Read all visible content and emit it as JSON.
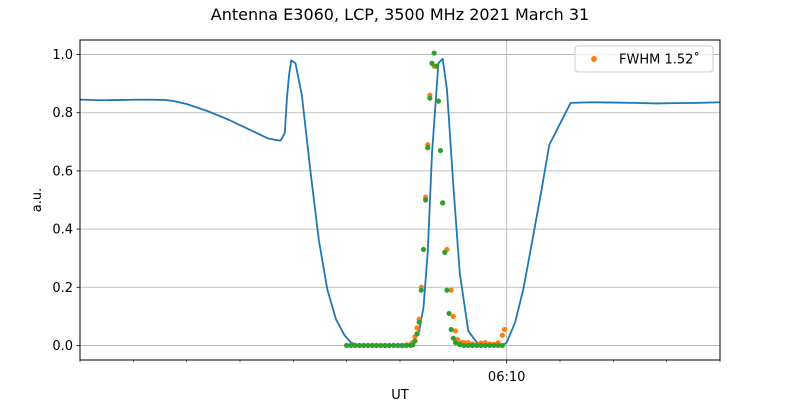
{
  "chart_data": {
    "type": "line",
    "title": "Antenna E3060, LCP, 3500 MHz 2021 March 31",
    "xlabel": "UT",
    "ylabel": "a.u.",
    "xlim": [
      0,
      15
    ],
    "ylim": [
      -0.05,
      1.05
    ],
    "x_unit": "minutes",
    "yticks": [
      0.0,
      0.2,
      0.4,
      0.6,
      0.8,
      1.0
    ],
    "ytick_labels": [
      "0.0",
      "0.2",
      "0.4",
      "0.6",
      "0.8",
      "1.0"
    ],
    "xticks_major": [
      10
    ],
    "xtick_labels": [
      "06:10"
    ],
    "xticks_minor": [
      0,
      1.25,
      2.5,
      3.75,
      5,
      6.25,
      7.5,
      8.75,
      11.25,
      12.5,
      13.75,
      15
    ],
    "grid": true,
    "legend": {
      "position": "top-right",
      "entries": [
        {
          "label": "FWHM 1.52˚",
          "color": "#ff7f0e",
          "marker": "circle"
        }
      ]
    },
    "series": [
      {
        "kind": "line",
        "color": "#1f77b4",
        "x": [
          0,
          0.5,
          1,
          1.5,
          2,
          2.2,
          2.5,
          3,
          3.5,
          4,
          4.4,
          4.6,
          4.7,
          4.8,
          4.85,
          4.9,
          4.95,
          5.05,
          5.2,
          5.4,
          5.6,
          5.8,
          6.0,
          6.2,
          6.35,
          6.5,
          6.7,
          6.9,
          7.1,
          7.4,
          7.7,
          7.85,
          7.95,
          8.05,
          8.15,
          8.25,
          8.4,
          8.5,
          8.6,
          8.75,
          8.9,
          9.1,
          9.3,
          9.5,
          9.7,
          9.9,
          10.0,
          10.2,
          10.4,
          10.6,
          10.8,
          11.0,
          11.5,
          12,
          12.5,
          13,
          13.5,
          14,
          14.5,
          15
        ],
        "y": [
          0.845,
          0.843,
          0.844,
          0.845,
          0.844,
          0.84,
          0.83,
          0.805,
          0.775,
          0.74,
          0.712,
          0.706,
          0.704,
          0.73,
          0.85,
          0.93,
          0.98,
          0.97,
          0.86,
          0.6,
          0.36,
          0.19,
          0.09,
          0.035,
          0.01,
          0.002,
          0.0,
          0.0,
          0.0,
          0.0,
          0.005,
          0.02,
          0.05,
          0.13,
          0.32,
          0.66,
          0.97,
          0.985,
          0.88,
          0.55,
          0.25,
          0.05,
          0.01,
          0.002,
          0.0,
          0.0,
          0.01,
          0.08,
          0.2,
          0.36,
          0.52,
          0.69,
          0.834,
          0.836,
          0.835,
          0.834,
          0.832,
          0.833,
          0.834,
          0.836
        ]
      },
      {
        "kind": "scatter",
        "name": "FWHM 1.52˚",
        "color": "#ff7f0e",
        "x": [
          6.25,
          6.35,
          6.45,
          6.55,
          6.65,
          6.75,
          6.85,
          6.95,
          7.05,
          7.15,
          7.25,
          7.35,
          7.45,
          7.55,
          7.65,
          7.75,
          7.8,
          7.85,
          7.9,
          7.95,
          8.0,
          8.05,
          8.1,
          8.15,
          8.2,
          8.3,
          8.35,
          8.4,
          8.45,
          8.5,
          8.6,
          8.7,
          8.75,
          8.8,
          8.85,
          8.9,
          8.95,
          9.0,
          9.1,
          9.2,
          9.3,
          9.4,
          9.5,
          9.6,
          9.7,
          9.8,
          9.9,
          9.95
        ],
        "y": [
          0.0,
          0.0,
          0.0,
          0.0,
          0.0,
          0.0,
          0.0,
          0.0,
          0.0,
          0.0,
          0.0,
          0.0,
          0.0,
          0.0,
          0.002,
          0.003,
          0.01,
          0.03,
          0.06,
          0.09,
          0.2,
          0.33,
          0.51,
          0.69,
          0.86,
          0.96,
          0.96,
          0.84,
          0.67,
          0.49,
          0.33,
          0.19,
          0.1,
          0.05,
          0.02,
          0.007,
          0.01,
          0.01,
          0.01,
          0.005,
          0.002,
          0.008,
          0.01,
          0.005,
          0.004,
          0.01,
          0.035,
          0.055
        ]
      },
      {
        "kind": "scatter",
        "color": "#2ca02c",
        "x": [
          6.25,
          6.35,
          6.45,
          6.55,
          6.65,
          6.75,
          6.85,
          6.95,
          7.05,
          7.15,
          7.25,
          7.35,
          7.45,
          7.55,
          7.65,
          7.75,
          7.8,
          7.85,
          7.9,
          7.95,
          8.0,
          8.05,
          8.1,
          8.15,
          8.2,
          8.25,
          8.3,
          8.35,
          8.4,
          8.45,
          8.5,
          8.55,
          8.6,
          8.65,
          8.7,
          8.75,
          8.8,
          8.9,
          9.0,
          9.1,
          9.2,
          9.3,
          9.4,
          9.5,
          9.6,
          9.7,
          9.8,
          9.9
        ],
        "y": [
          0.0,
          0.0,
          0.0,
          0.0,
          0.0,
          0.0,
          0.0,
          0.0,
          0.0,
          0.0,
          0.0,
          0.0,
          0.0,
          0.0,
          0.0,
          0.0,
          0.002,
          0.015,
          0.04,
          0.08,
          0.19,
          0.33,
          0.5,
          0.68,
          0.85,
          0.97,
          1.005,
          0.96,
          0.84,
          0.67,
          0.49,
          0.32,
          0.19,
          0.11,
          0.055,
          0.025,
          0.01,
          0.003,
          0.0,
          0.0,
          0.0,
          0.0,
          0.0,
          0.0,
          0.0,
          0.0,
          0.0,
          0.0
        ]
      }
    ]
  }
}
